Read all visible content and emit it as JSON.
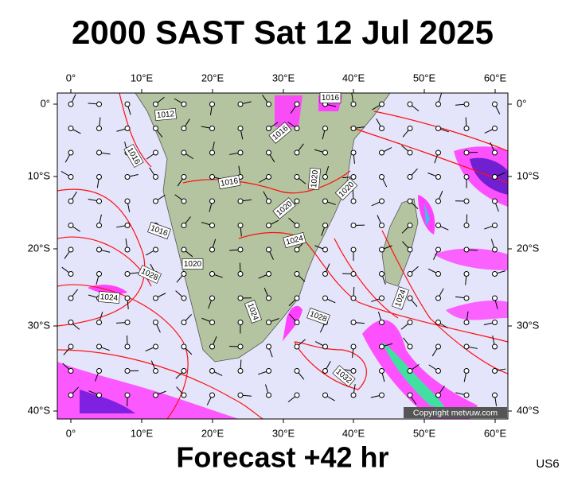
{
  "header": {
    "title": "2000 SAST Sat 12 Jul 2025"
  },
  "map": {
    "lon_labels": [
      "0°",
      "10°E",
      "20°E",
      "30°E",
      "40°E",
      "50°E",
      "60°E"
    ],
    "lat_labels": [
      "0°",
      "10°S",
      "20°S",
      "30°S",
      "40°S"
    ],
    "isobar_labels": [
      "1016",
      "1012",
      "1016",
      "1016",
      "1016",
      "1020",
      "1020",
      "1020",
      "1016",
      "1024",
      "1020",
      "1028",
      "1024",
      "1024",
      "1028",
      "1024",
      "1032"
    ],
    "copyright": "Copyright metvuw.com"
  },
  "footer": {
    "forecast": "Forecast +42 hr",
    "code": "US6"
  }
}
